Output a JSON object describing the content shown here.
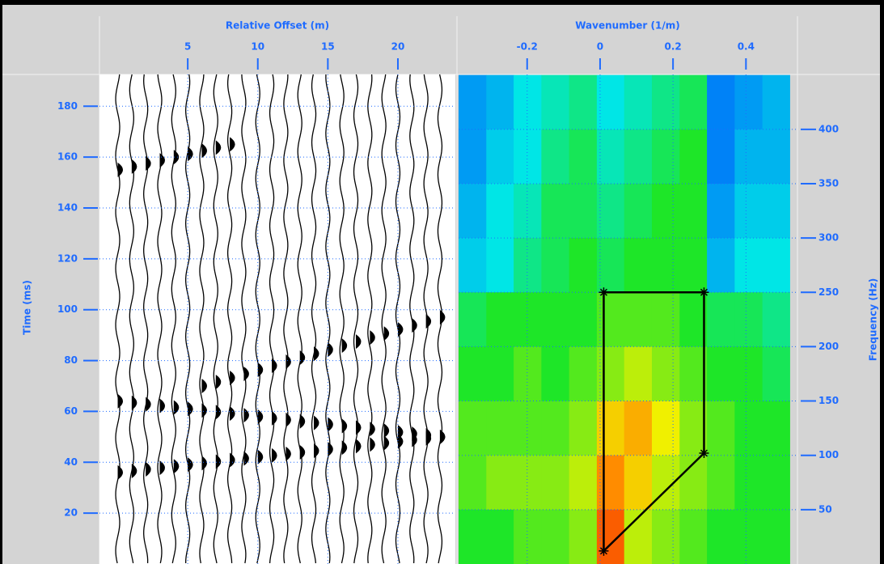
{
  "chart_data": [
    {
      "type": "wiggle",
      "x_label": "Relative Offset (m)",
      "y_label": "Time (ms)",
      "x": [
        0,
        1,
        2,
        3,
        4,
        5,
        6,
        7,
        8,
        9,
        10,
        11,
        12,
        13,
        14,
        15,
        16,
        17,
        18,
        19,
        20,
        21,
        22,
        23
      ],
      "events": [
        {
          "x": [
            0,
            23
          ],
          "y": [
            36,
            50
          ]
        },
        {
          "x": [
            0,
            23
          ],
          "y": [
            64,
            50
          ]
        },
        {
          "x": [
            6,
            23
          ],
          "y": [
            70,
            97
          ]
        },
        {
          "x": [
            0,
            8
          ],
          "y": [
            155,
            165
          ]
        }
      ],
      "xlim": [
        -1.3,
        24.1
      ],
      "xticks": [
        5,
        10,
        15,
        20
      ],
      "ylim": [
        0,
        192.5
      ],
      "yticks": [
        20,
        40,
        60,
        80,
        100,
        120,
        140,
        160,
        180
      ],
      "grid": true
    },
    {
      "type": "heatmap",
      "x_label": "Wavenumber (1/m)",
      "y_label": "Frequency (Hz)",
      "xbins": [
        -0.388,
        -0.312,
        -0.237,
        -0.161,
        -0.085,
        -0.009,
        0.066,
        0.142,
        0.218,
        0.293,
        0.369,
        0.445,
        0.52
      ],
      "ybins": [
        450,
        400,
        350,
        300,
        250,
        200,
        150,
        100,
        50,
        0
      ],
      "z": [
        [
          0.15,
          0.2,
          0.3,
          0.35,
          0.4,
          0.3,
          0.35,
          0.4,
          0.45,
          0.1,
          0.15,
          0.2
        ],
        [
          0.15,
          0.25,
          0.3,
          0.4,
          0.45,
          0.35,
          0.4,
          0.45,
          0.5,
          0.1,
          0.2,
          0.2
        ],
        [
          0.2,
          0.3,
          0.35,
          0.45,
          0.45,
          0.4,
          0.45,
          0.5,
          0.5,
          0.15,
          0.25,
          0.25
        ],
        [
          0.25,
          0.3,
          0.4,
          0.45,
          0.5,
          0.45,
          0.5,
          0.5,
          0.5,
          0.2,
          0.3,
          0.3
        ],
        [
          0.45,
          0.5,
          0.5,
          0.5,
          0.5,
          0.55,
          0.55,
          0.55,
          0.5,
          0.45,
          0.45,
          0.4
        ],
        [
          0.5,
          0.5,
          0.55,
          0.5,
          0.55,
          0.6,
          0.65,
          0.6,
          0.55,
          0.5,
          0.5,
          0.45
        ],
        [
          0.55,
          0.55,
          0.55,
          0.55,
          0.6,
          0.75,
          0.8,
          0.7,
          0.6,
          0.55,
          0.5,
          0.5
        ],
        [
          0.55,
          0.6,
          0.6,
          0.6,
          0.65,
          0.85,
          0.75,
          0.65,
          0.6,
          0.55,
          0.5,
          0.5
        ],
        [
          0.5,
          0.5,
          0.55,
          0.55,
          0.6,
          0.9,
          0.65,
          0.6,
          0.55,
          0.5,
          0.5,
          0.5
        ]
      ],
      "polygon": {
        "x": [
          0.01,
          0.285,
          0.285,
          0.01
        ],
        "y": [
          250,
          250,
          102,
          12
        ]
      },
      "xlim": [
        -0.388,
        0.539
      ],
      "xticks": [
        -0.2,
        0,
        0.2,
        0.4
      ],
      "ylim": [
        0,
        450.5
      ],
      "yticks": [
        50,
        100,
        150,
        200,
        250,
        300,
        350,
        400
      ],
      "grid": true
    }
  ]
}
